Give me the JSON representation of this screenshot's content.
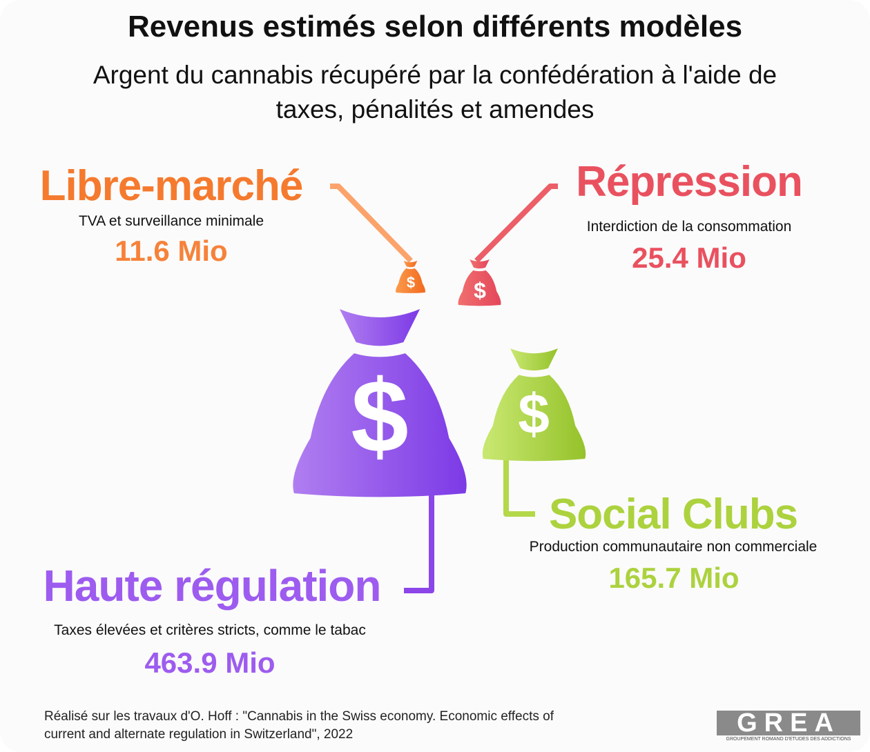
{
  "title": "Revenus estimés selon différents modèles",
  "subtitle": "Argent du cannabis récupéré par la confédération à l'aide de taxes, pénalités et amendes",
  "models": [
    {
      "name": "Libre-marché",
      "description": "TVA et surveillance minimale",
      "amount": "11.6 Mio"
    },
    {
      "name": "Répression",
      "description": "Interdiction de la consommation",
      "amount": "25.4 Mio"
    },
    {
      "name": "Social Clubs",
      "description": "Production communautaire non commerciale",
      "amount": "165.7 Mio"
    },
    {
      "name": "Haute régulation",
      "description": "Taxes élevées et critères stricts, comme le tabac",
      "amount": "463.9 Mio"
    }
  ],
  "source": "Réalisé sur les travaux d'O. Hoff  : \"Cannabis in the Swiss economy. Economic effects of current and alternate regulation in Switzerland\", 2022",
  "logo": {
    "name": "GREA",
    "tagline": "GROUPEMENT ROMAND D'ETUDES DES ADDICTIONS"
  }
}
